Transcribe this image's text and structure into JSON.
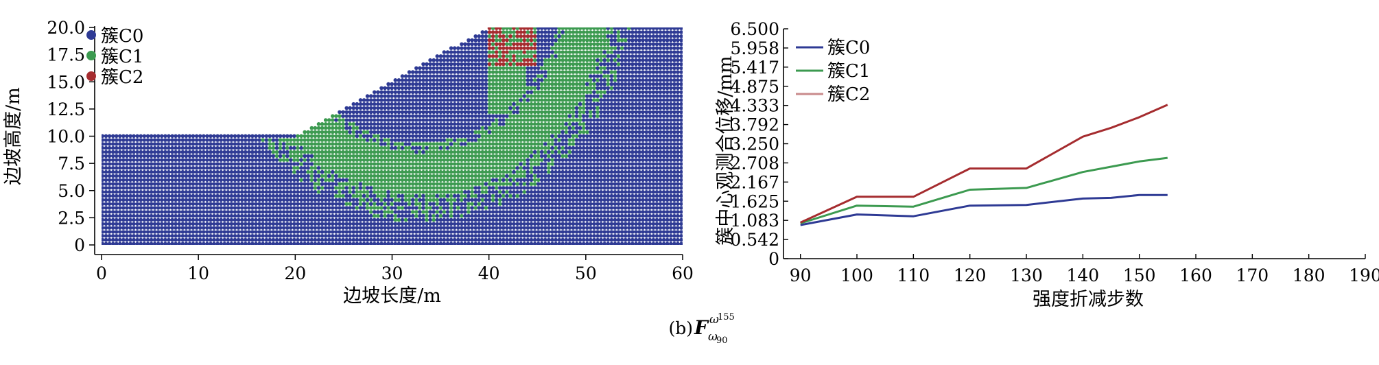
{
  "caption": {
    "prefix": "(b) ",
    "symbol": "F",
    "subscript": "ω",
    "subscript_index": "90",
    "superscript": "ω",
    "superscript_index": "155"
  },
  "chart_data": [
    {
      "type": "scatter",
      "xlabel": "边坡长度/m",
      "ylabel": "边坡高度/m",
      "xlim": [
        0,
        60
      ],
      "ylim": [
        0,
        20
      ],
      "x_ticks": [
        "0",
        "10",
        "20",
        "30",
        "40",
        "50",
        "60"
      ],
      "y_ticks": [
        "0",
        "2.5",
        "5.0",
        "7.5",
        "10.0",
        "12.5",
        "15.0",
        "17.5",
        "20.0"
      ],
      "legend_position": "top-left",
      "slope_geometry": {
        "toe": [
          20,
          10
        ],
        "crest": [
          40,
          20
        ],
        "lower_bench_height": 10,
        "upper_bench_height": 20
      },
      "series": [
        {
          "name": "簇C0",
          "color": "#2e3a94"
        },
        {
          "name": "簇C1",
          "color": "#3c9a50"
        },
        {
          "name": "簇C2",
          "color": "#a52c2f"
        }
      ]
    },
    {
      "type": "line",
      "xlabel": "强度折减步数",
      "ylabel": "簇中心观测合位移/mm",
      "xlim": [
        87,
        190
      ],
      "ylim": [
        0,
        6.5
      ],
      "x_ticks": [
        "90",
        "100",
        "110",
        "120",
        "130",
        "140",
        "150",
        "160",
        "170",
        "180",
        "190"
      ],
      "y_ticks": [
        "0",
        "0.542",
        "1.083",
        "1.625",
        "2.167",
        "2.708",
        "3.250",
        "3.792",
        "4.333",
        "4.875",
        "5.417",
        "5.958",
        "6.500"
      ],
      "legend_position": "top-left",
      "x": [
        90,
        100,
        110,
        120,
        130,
        140,
        145,
        150,
        155
      ],
      "series": [
        {
          "name": "簇C0",
          "color": "#2e3a94",
          "values": [
            0.95,
            1.25,
            1.2,
            1.5,
            1.52,
            1.7,
            1.72,
            1.8,
            1.8
          ]
        },
        {
          "name": "簇C1",
          "color": "#3c9a50",
          "values": [
            1.0,
            1.5,
            1.47,
            1.95,
            2.0,
            2.45,
            2.6,
            2.75,
            2.85
          ]
        },
        {
          "name": "簇C2",
          "color": "#a52c2f",
          "values": [
            1.02,
            1.75,
            1.75,
            2.55,
            2.55,
            3.45,
            3.7,
            4.0,
            4.35
          ]
        }
      ]
    }
  ]
}
